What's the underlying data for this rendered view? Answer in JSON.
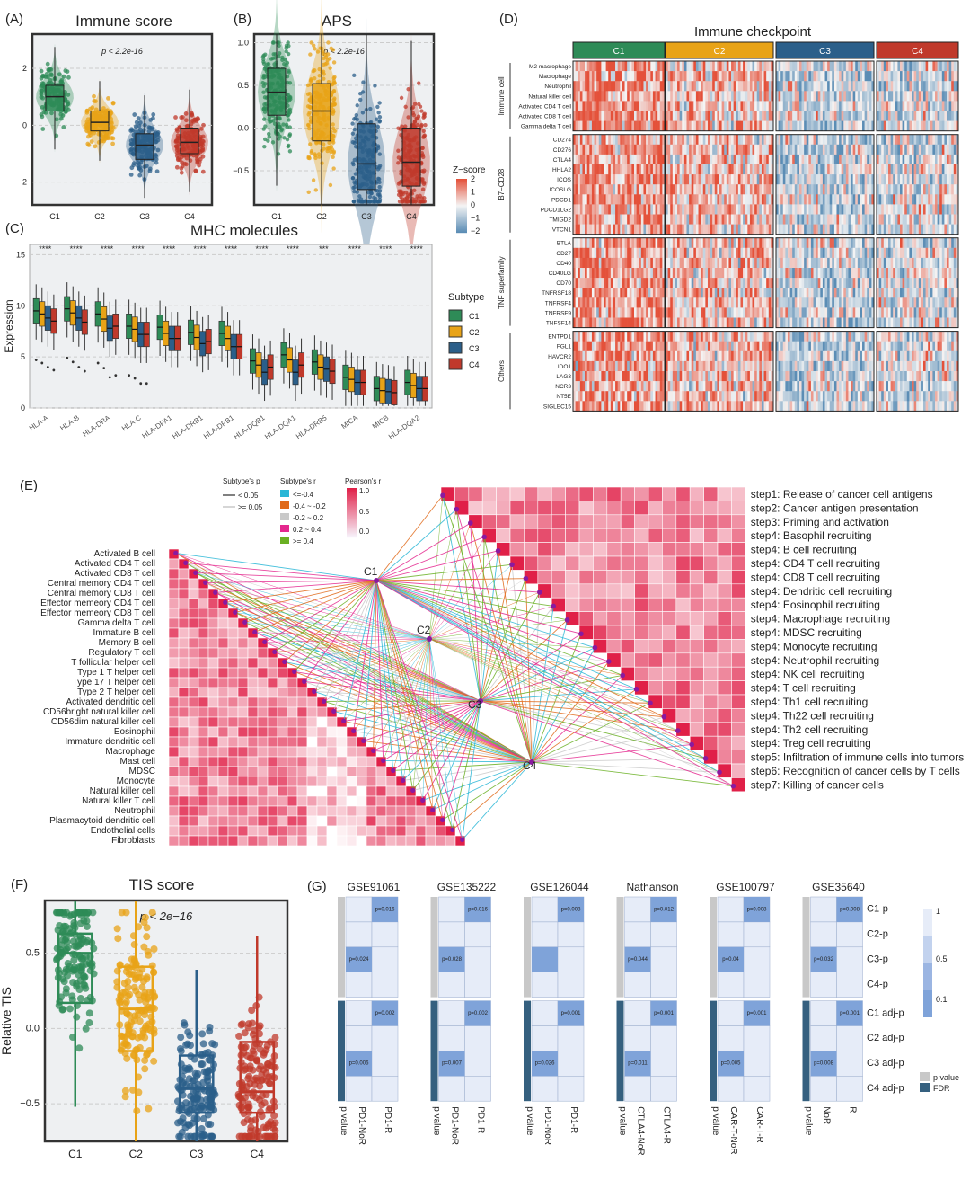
{
  "colors": {
    "C1": "#2e8b57",
    "C2": "#e8a317",
    "C3": "#2b5f8a",
    "C4": "#c0392b",
    "panelBg": "#eef0f2",
    "heatHigh": "#e4513a",
    "heatLow": "#5b8db5",
    "corr": "#e02048",
    "fdr": "#35607f"
  },
  "subtypes": [
    "C1",
    "C2",
    "C3",
    "C4"
  ],
  "panelA": {
    "letter": "(A)",
    "title": "Immune score",
    "pval": "p < 2.2e-16",
    "yticks": [
      "2",
      "0",
      "−2"
    ],
    "chart_data": {
      "type": "box",
      "categories": [
        "C1",
        "C2",
        "C3",
        "C4"
      ],
      "medians": [
        1.0,
        0.1,
        -0.7,
        -0.6
      ],
      "q1": [
        0.5,
        -0.2,
        -1.2,
        -1.0
      ],
      "q3": [
        1.4,
        0.5,
        -0.3,
        -0.1
      ],
      "ylim": [
        -2.8,
        3.2
      ]
    }
  },
  "panelB": {
    "letter": "(B)",
    "title": "APS",
    "pval": "p < 2.2e-16",
    "yticks": [
      "1.0",
      "0.5",
      "0.0",
      "−0.5"
    ],
    "chart_data": {
      "type": "box",
      "categories": [
        "C1",
        "C2",
        "C3",
        "C4"
      ],
      "medians": [
        0.42,
        0.2,
        -0.42,
        -0.4
      ],
      "q1": [
        0.15,
        -0.15,
        -0.72,
        -0.68
      ],
      "q3": [
        0.7,
        0.52,
        0.05,
        0.0
      ],
      "ylim": [
        -0.9,
        1.1
      ]
    }
  },
  "panelC": {
    "letter": "(C)",
    "title": "MHC molecules",
    "ylabel": "Expression",
    "yticks": [
      "15",
      "10",
      "5",
      "0"
    ],
    "genes": [
      "HLA-A",
      "HLA-B",
      "HLA-DRA",
      "HLA-C",
      "HLA-DPA1",
      "HLA-DRB1",
      "HLA-DPB1",
      "HLA-DQB1",
      "HLA-DQA1",
      "HLA-DRB5",
      "MICA",
      "MICB",
      "HLA-DQA2"
    ],
    "sig": [
      "****",
      "****",
      "****",
      "****",
      "****",
      "****",
      "****",
      "****",
      "****",
      "***",
      "****",
      "****",
      "****"
    ],
    "legendTitle": "Subtype",
    "chart_data": {
      "type": "box",
      "medians": [
        [
          9.5,
          9.2,
          8.8,
          8.5
        ],
        [
          9.7,
          9.3,
          8.8,
          8.4
        ],
        [
          9.2,
          8.7,
          7.8,
          8.0
        ],
        [
          8.0,
          7.7,
          7.2,
          7.2
        ],
        [
          7.9,
          7.3,
          6.8,
          6.8
        ],
        [
          7.4,
          6.9,
          6.3,
          6.5
        ],
        [
          7.3,
          6.8,
          6.0,
          6.0
        ],
        [
          4.6,
          4.2,
          3.5,
          4.0
        ],
        [
          5.2,
          4.7,
          3.5,
          4.2
        ],
        [
          4.5,
          4.0,
          3.8,
          3.6
        ],
        [
          3.0,
          2.8,
          2.5,
          2.5
        ],
        [
          1.9,
          1.7,
          1.6,
          1.5
        ],
        [
          2.5,
          2.2,
          1.9,
          1.9
        ]
      ],
      "ylim": [
        0,
        16
      ]
    }
  },
  "panelD": {
    "letter": "(D)",
    "title": "Immune checkpoint",
    "legendTitle": "Z−score",
    "legendTicks": [
      "2",
      "1",
      "0",
      "−1",
      "−2"
    ],
    "groups": [
      {
        "name": "Immune cell",
        "rows": [
          "M2 macrophage",
          "Macrophage",
          "Neutrophil",
          "Natural killer cell",
          "Activated CD4 T cell",
          "Activated CD8 T cell",
          "Gamma delta T cell"
        ]
      },
      {
        "name": "B7−CD28",
        "rows": [
          "CD274",
          "CD276",
          "CTLA4",
          "HHLA2",
          "ICOS",
          "ICOSLG",
          "PDCD1",
          "PDCD1LG2",
          "TMIGD2",
          "VTCN1"
        ]
      },
      {
        "name": "TNF superfamily",
        "rows": [
          "BTLA",
          "CD27",
          "CD40",
          "CD40LG",
          "CD70",
          "TNFRSF18",
          "TNFRSF4",
          "TNFRSF9",
          "TNFSF14"
        ]
      },
      {
        "name": "Others",
        "rows": [
          "ENTPD1",
          "FGL1",
          "HAVCR2",
          "IDO1",
          "LAG3",
          "NCR3",
          "NT5E",
          "SIGLEC15"
        ]
      }
    ]
  },
  "panelE": {
    "letter": "(E)",
    "legend": {
      "pTitle": "Subtype's p",
      "p1": "< 0.05",
      "p2": ">= 0.05",
      "rTitle": "Subtype's r",
      "r1": "<=-0.4",
      "r2": "-0.4 ~ -0.2",
      "r3": "-0.2 ~ 0.2",
      "r4": "0.2 ~ 0.4",
      "r5": ">= 0.4",
      "pearTitle": "Pearson's r",
      "pt1": "1.0",
      "pt2": "0.5",
      "pt3": "0.0"
    },
    "cells": [
      "Activated B cell",
      "Activated CD4 T cell",
      "Activated CD8 T cell",
      "Central memory CD4 T cell",
      "Central memory CD8 T cell",
      "Effector memeory CD4 T cell",
      "Effector memeory CD8 T cell",
      "Gamma delta T cell",
      "Immature  B cell",
      "Memory B cell",
      "Regulatory T cell",
      "T follicular helper cell",
      "Type 1 T helper cell",
      "Type 17 T helper cell",
      "Type 2 T helper cell",
      "Activated dendritic cell",
      "CD56bright natural killer cell",
      "CD56dim natural killer cell",
      "Eosinophil",
      "Immature dendritic cell",
      "Macrophage",
      "Mast cell",
      "MDSC",
      "Monocyte",
      "Natural killer cell",
      "Natural killer T cell",
      "Neutrophil",
      "Plasmacytoid dendritic cell",
      "Endothelial cells",
      "Fibroblasts"
    ],
    "steps": [
      "step1: Release of cancer cell antigens",
      "step2: Cancer antigen presentation",
      "step3: Priming and activation",
      "step4: Basophil recruiting",
      "step4: B cell recruiting",
      "step4: CD4 T cell recruiting",
      "step4: CD8 T cell recruiting",
      "step4: Dendritic cell recruiting",
      "step4: Eosinophil recruiting",
      "step4: Macrophage recruiting",
      "step4: MDSC recruiting",
      "step4: Monocyte recruiting",
      "step4: Neutrophil recruiting",
      "step4: NK cell recruiting",
      "step4: T cell recruiting",
      "step4: Th1 cell recruiting",
      "step4: Th22 cell recruiting",
      "step4: Th2 cell recruiting",
      "step4: Treg cell recruiting",
      "step5: Infiltration of immune cells into tumors",
      "step6: Recognition of cancer cells by T cells",
      "step7: Killing of cancer cells"
    ]
  },
  "panelF": {
    "letter": "(F)",
    "title": "TIS score",
    "pval": "p < 2e−16",
    "ylabel": "Relative TIS",
    "yticks": [
      "0.5",
      "0.0",
      "−0.5"
    ],
    "chart_data": {
      "type": "box",
      "categories": [
        "C1",
        "C2",
        "C3",
        "C4"
      ],
      "medians": [
        0.5,
        0.13,
        -0.4,
        -0.42
      ],
      "q1": [
        0.17,
        -0.15,
        -0.56,
        -0.56
      ],
      "q3": [
        0.63,
        0.41,
        -0.18,
        -0.09
      ],
      "ylim": [
        -0.75,
        0.85
      ]
    }
  },
  "panelG": {
    "letter": "(G)",
    "datasets": [
      {
        "name": "GSE91061",
        "cols": [
          "PD1-NoR",
          "PD1-R"
        ],
        "c1p": "p=0.016",
        "c3p": "p=0.024",
        "c1fdr": "p=0.002",
        "c3fdr": "p=0.006"
      },
      {
        "name": "GSE135222",
        "cols": [
          "PD1-NoR",
          "PD1-R"
        ],
        "c1p": "p=0.016",
        "c3p": "p=0.028",
        "c1fdr": "p=0.002",
        "c3fdr": "p=0.007"
      },
      {
        "name": "GSE126044",
        "cols": [
          "PD1-NoR",
          "PD1-R"
        ],
        "c1p": "p=0.008",
        "c3p": "",
        "c1fdr": "p=0.001",
        "c3fdr": "p=0.026"
      },
      {
        "name": "Nathanson",
        "cols": [
          "CTLA4-NoR",
          "CTLA4-R"
        ],
        "c1p": "p=0.012",
        "c3p": "p=0.044",
        "c1fdr": "p=0.001",
        "c3fdr": "p=0.011"
      },
      {
        "name": "GSE100797",
        "cols": [
          "CAR-T-NoR",
          "CAR-T-R"
        ],
        "c1p": "p=0.008",
        "c3p": "p=0.04",
        "c1fdr": "p=0.001",
        "c3fdr": "p=0.005"
      },
      {
        "name": "GSE35640",
        "cols": [
          "NoR",
          "R"
        ],
        "c1p": "p=0.008",
        "c3p": "p=0.032",
        "c1fdr": "p=0.001",
        "c3fdr": "p=0.008"
      }
    ],
    "pvalueLabel": "p value",
    "rows": [
      "C1-p",
      "C2-p",
      "C3-p",
      "C4-p",
      "C1 adj-p",
      "C2 adj-p",
      "C3 adj-p",
      "C4 adj-p"
    ],
    "legendTicks": [
      "1",
      "0.5",
      "0.1"
    ],
    "legendCat": [
      "p value",
      "FDR"
    ]
  }
}
